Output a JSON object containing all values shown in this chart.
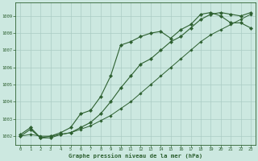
{
  "title": "Graphe pression niveau de la mer (hPa)",
  "bg_color": "#cce8e0",
  "grid_color": "#aaccc4",
  "line_color": "#2d6030",
  "xlim": [
    -0.5,
    23.5
  ],
  "ylim": [
    1001.5,
    1009.8
  ],
  "yticks": [
    1002,
    1003,
    1004,
    1005,
    1006,
    1007,
    1008,
    1009
  ],
  "xticks": [
    0,
    1,
    2,
    3,
    4,
    5,
    6,
    7,
    8,
    9,
    10,
    11,
    12,
    13,
    14,
    15,
    16,
    17,
    18,
    19,
    20,
    21,
    22,
    23
  ],
  "series1_x": [
    0,
    1,
    2,
    3,
    4,
    5,
    6,
    7,
    8,
    9,
    10,
    11,
    12,
    13,
    14,
    15,
    16,
    17,
    18,
    19,
    20,
    21,
    22,
    23
  ],
  "series1_y": [
    1002.1,
    1002.5,
    1001.9,
    1002.0,
    1002.2,
    1002.5,
    1003.3,
    1003.5,
    1004.3,
    1005.5,
    1007.3,
    1007.5,
    1007.8,
    1008.0,
    1008.1,
    1007.7,
    1008.2,
    1008.5,
    1009.1,
    1009.2,
    1009.0,
    1008.6,
    1008.6,
    1008.3
  ],
  "series2_x": [
    0,
    1,
    2,
    3,
    4,
    5,
    6,
    7,
    8,
    9,
    10,
    11,
    12,
    13,
    14,
    15,
    16,
    17,
    18,
    19,
    20,
    21,
    22,
    23
  ],
  "series2_y": [
    1002.0,
    1002.4,
    1001.9,
    1001.9,
    1002.1,
    1002.2,
    1002.5,
    1002.8,
    1003.3,
    1004.0,
    1004.8,
    1005.5,
    1006.2,
    1006.5,
    1007.0,
    1007.5,
    1007.8,
    1008.3,
    1008.8,
    1009.1,
    1009.2,
    1009.1,
    1009.0,
    1009.2
  ],
  "series3_x": [
    0,
    1,
    2,
    3,
    4,
    5,
    6,
    7,
    8,
    9,
    10,
    11,
    12,
    13,
    14,
    15,
    16,
    17,
    18,
    19,
    20,
    21,
    22,
    23
  ],
  "series3_y": [
    1002.0,
    1002.1,
    1002.0,
    1002.0,
    1002.1,
    1002.2,
    1002.4,
    1002.6,
    1002.9,
    1003.2,
    1003.6,
    1004.0,
    1004.5,
    1005.0,
    1005.5,
    1006.0,
    1006.5,
    1007.0,
    1007.5,
    1007.9,
    1008.2,
    1008.5,
    1008.8,
    1009.1
  ]
}
